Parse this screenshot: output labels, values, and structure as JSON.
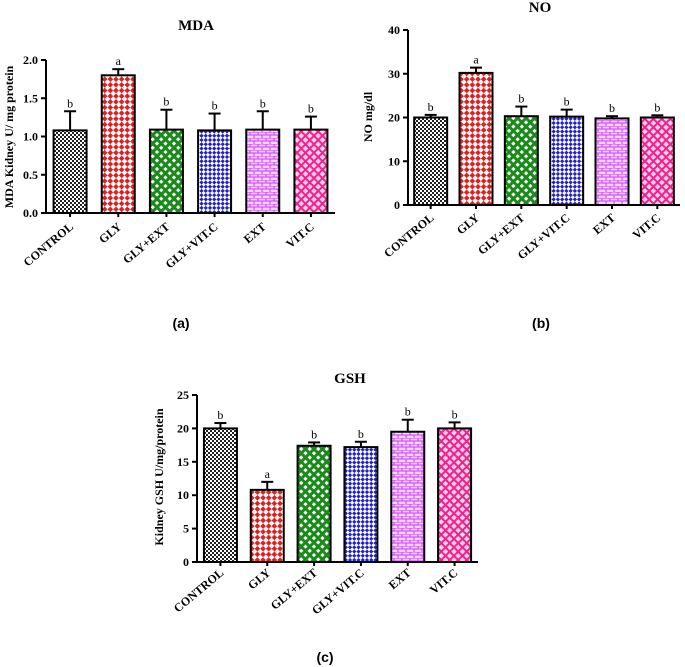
{
  "colors": {
    "control": "#222222",
    "gly": "#e02020",
    "gly_ext": "#1a8a1a",
    "gly_vitc": "#2020c8",
    "ext": "#cc33ff",
    "vitc": "#f0208f",
    "axis": "#000000"
  },
  "chart_data": [
    {
      "type": "bar",
      "panel_label": "(a)",
      "title": "MDA",
      "xlabel": "",
      "ylabel": "MDA Kidney U/ mg protein",
      "ylim": [
        0,
        2.0
      ],
      "yticks": [
        "0.0",
        "0.5",
        "1.0",
        "1.5",
        "2.0"
      ],
      "categories": [
        "CONTROL",
        "GLY",
        "GLY+EXT",
        "GLY+VIT.C",
        "EXT",
        "VIT.C"
      ],
      "values": [
        1.08,
        1.8,
        1.09,
        1.08,
        1.09,
        1.09
      ],
      "errors": [
        0.25,
        0.08,
        0.26,
        0.22,
        0.24,
        0.17
      ],
      "significance": [
        "b",
        "a",
        "b",
        "b",
        "b",
        "b"
      ],
      "grid": false,
      "legend": "none"
    },
    {
      "type": "bar",
      "panel_label": "(b)",
      "title": "NO",
      "xlabel": "",
      "ylabel": "NO mg/dl",
      "ylim": [
        0,
        40
      ],
      "yticks": [
        "0",
        "10",
        "20",
        "30",
        "40"
      ],
      "categories": [
        "CONTROL",
        "GLY",
        "GLY+EXT",
        "GLY+VIT.C",
        "EXT",
        "VIT.C"
      ],
      "values": [
        20.0,
        30.2,
        20.3,
        20.2,
        19.8,
        20.0
      ],
      "errors": [
        0.6,
        1.2,
        2.2,
        1.6,
        0.5,
        0.5
      ],
      "significance": [
        "b",
        "a",
        "b",
        "b",
        "b",
        "b"
      ],
      "grid": false,
      "legend": "none"
    },
    {
      "type": "bar",
      "panel_label": "(c)",
      "title": "GSH",
      "xlabel": "",
      "ylabel": "Kidney GSH U/mg/protein",
      "ylim": [
        0,
        25
      ],
      "yticks": [
        "0",
        "5",
        "10",
        "15",
        "20",
        "25"
      ],
      "categories": [
        "CONTROL",
        "GLY",
        "GLY+EXT",
        "GLY+VIT.C",
        "EXT",
        "VIT.C"
      ],
      "values": [
        20.0,
        10.8,
        17.4,
        17.2,
        19.5,
        20.0
      ],
      "errors": [
        0.8,
        1.2,
        0.5,
        0.8,
        1.8,
        0.9
      ],
      "significance": [
        "b",
        "a",
        "b",
        "b",
        "b",
        "b"
      ],
      "grid": false,
      "legend": "none"
    }
  ]
}
